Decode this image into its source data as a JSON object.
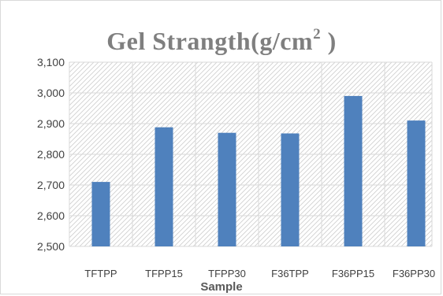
{
  "chart_data": {
    "type": "bar",
    "title": {
      "main": "Gel Strangth(g/cm",
      "sup": "2",
      "tail": " )"
    },
    "xlabel": "Sample",
    "ylabel": "",
    "categories": [
      "TFTPP",
      "TFPP15",
      "TFPP30",
      "F36TPP",
      "F36PP15",
      "F36PP30"
    ],
    "values": [
      2710,
      2888,
      2870,
      2868,
      2990,
      2910
    ],
    "ylim": [
      2500,
      3100
    ],
    "yticks": [
      2500,
      2600,
      2700,
      2800,
      2900,
      3000,
      3100
    ],
    "ytick_labels": [
      "2,500",
      "2,600",
      "2,700",
      "2,800",
      "2,900",
      "3,000",
      "3,100"
    ],
    "grid": true,
    "legend": "none",
    "bar_color": "#4f81bd"
  }
}
